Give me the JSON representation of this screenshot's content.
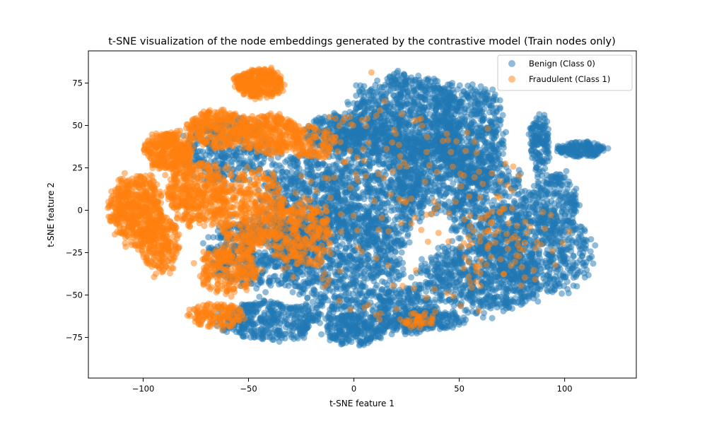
{
  "chart_data": {
    "type": "scatter",
    "title": "t-SNE visualization of the node embeddings generated by the contrastive model (Train nodes only)",
    "xlabel": "t-SNE feature 1",
    "ylabel": "t-SNE feature 2",
    "xlim": [
      -126,
      134
    ],
    "ylim": [
      -99,
      94
    ],
    "xticks": [
      -100,
      -50,
      0,
      50,
      100
    ],
    "yticks": [
      -75,
      -50,
      -25,
      0,
      25,
      50,
      75
    ],
    "grid": false,
    "legend_position": "top-right",
    "series": [
      {
        "name": "Benign (Class 0)",
        "color": "#1f77b4",
        "clusters": [
          {
            "cx": 25,
            "cy": 55,
            "rx": 28,
            "ry": 26,
            "n": 900
          },
          {
            "cx": 55,
            "cy": 45,
            "rx": 18,
            "ry": 30,
            "n": 550
          },
          {
            "cx": 10,
            "cy": 15,
            "rx": 25,
            "ry": 40,
            "n": 800
          },
          {
            "cx": 40,
            "cy": 20,
            "rx": 22,
            "ry": 25,
            "n": 500
          },
          {
            "cx": 65,
            "cy": 0,
            "rx": 20,
            "ry": 28,
            "n": 500
          },
          {
            "cx": 60,
            "cy": -40,
            "rx": 30,
            "ry": 22,
            "n": 700
          },
          {
            "cx": 90,
            "cy": -25,
            "rx": 25,
            "ry": 25,
            "n": 500
          },
          {
            "cx": 95,
            "cy": 5,
            "rx": 12,
            "ry": 18,
            "n": 220
          },
          {
            "cx": 88,
            "cy": 40,
            "rx": 5,
            "ry": 18,
            "n": 150
          },
          {
            "cx": 108,
            "cy": 36,
            "rx": 12,
            "ry": 5,
            "n": 160
          },
          {
            "cx": -5,
            "cy": -30,
            "rx": 30,
            "ry": 35,
            "n": 900
          },
          {
            "cx": -25,
            "cy": 5,
            "rx": 20,
            "ry": 30,
            "n": 550
          },
          {
            "cx": -45,
            "cy": -25,
            "rx": 25,
            "ry": 22,
            "n": 550
          },
          {
            "cx": -40,
            "cy": -65,
            "rx": 25,
            "ry": 12,
            "n": 400
          },
          {
            "cx": 0,
            "cy": -70,
            "rx": 15,
            "ry": 10,
            "n": 250
          },
          {
            "cx": 25,
            "cy": -60,
            "rx": 15,
            "ry": 15,
            "n": 250
          },
          {
            "cx": 35,
            "cy": -65,
            "rx": 18,
            "ry": 6,
            "n": 200
          },
          {
            "cx": -60,
            "cy": 35,
            "rx": 22,
            "ry": 20,
            "n": 350
          },
          {
            "cx": -10,
            "cy": 45,
            "rx": 15,
            "ry": 12,
            "n": 250
          }
        ]
      },
      {
        "name": "Fraudulent (Class 1)",
        "color": "#ff7f0e",
        "clusters": [
          {
            "cx": -103,
            "cy": 0,
            "rx": 13,
            "ry": 22,
            "n": 550
          },
          {
            "cx": -92,
            "cy": -20,
            "rx": 10,
            "ry": 18,
            "n": 250
          },
          {
            "cx": -88,
            "cy": 35,
            "rx": 12,
            "ry": 12,
            "n": 350
          },
          {
            "cx": -45,
            "cy": 75,
            "rx": 12,
            "ry": 9,
            "n": 350
          },
          {
            "cx": -65,
            "cy": 48,
            "rx": 16,
            "ry": 12,
            "n": 300
          },
          {
            "cx": -75,
            "cy": 10,
            "rx": 15,
            "ry": 20,
            "n": 400
          },
          {
            "cx": -50,
            "cy": 0,
            "rx": 18,
            "ry": 25,
            "n": 450
          },
          {
            "cx": -40,
            "cy": 45,
            "rx": 15,
            "ry": 12,
            "n": 300
          },
          {
            "cx": -60,
            "cy": -35,
            "rx": 15,
            "ry": 15,
            "n": 250
          },
          {
            "cx": -25,
            "cy": -15,
            "rx": 15,
            "ry": 20,
            "n": 250
          },
          {
            "cx": -65,
            "cy": -62,
            "rx": 15,
            "ry": 8,
            "n": 150
          },
          {
            "cx": -20,
            "cy": 40,
            "rx": 12,
            "ry": 10,
            "n": 120
          },
          {
            "cx": 30,
            "cy": -65,
            "rx": 10,
            "ry": 5,
            "n": 40
          },
          {
            "cx": 20,
            "cy": 0,
            "rx": 60,
            "ry": 70,
            "n": 200
          },
          {
            "cx": 75,
            "cy": -20,
            "rx": 25,
            "ry": 25,
            "n": 60
          }
        ]
      }
    ]
  }
}
